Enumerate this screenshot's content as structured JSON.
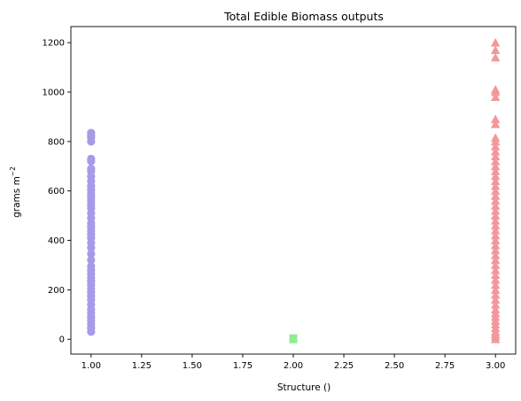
{
  "chart_data": {
    "type": "scatter",
    "title": "Total Edible Biomass outputs",
    "xlabel": "Structure ()",
    "ylabel_text": "grams m",
    "ylabel_superscript": "−2",
    "xlim": [
      0.9,
      3.1
    ],
    "ylim": [
      -60,
      1265
    ],
    "x_ticks": [
      1.0,
      1.25,
      1.5,
      1.75,
      2.0,
      2.25,
      2.5,
      2.75,
      3.0
    ],
    "x_tick_labels": [
      "1.00",
      "1.25",
      "1.50",
      "1.75",
      "2.00",
      "2.25",
      "2.50",
      "2.75",
      "3.00"
    ],
    "y_ticks": [
      0,
      200,
      400,
      600,
      800,
      1000,
      1200
    ],
    "y_tick_labels": [
      "0",
      "200",
      "400",
      "600",
      "800",
      "1000",
      "1200"
    ],
    "grid": false,
    "legend": false,
    "series": [
      {
        "marker": "circle",
        "color": "#a89ae8",
        "x": 1.0,
        "values": [
          30,
          45,
          60,
          75,
          90,
          105,
          120,
          140,
          160,
          175,
          190,
          205,
          220,
          235,
          250,
          265,
          280,
          295,
          320,
          345,
          370,
          390,
          410,
          425,
          440,
          455,
          470,
          490,
          510,
          530,
          545,
          560,
          575,
          590,
          605,
          620,
          640,
          660,
          680,
          690,
          720,
          730,
          800,
          815,
          825,
          835
        ]
      },
      {
        "marker": "square",
        "color": "#90ee90",
        "x": 2.0,
        "values": [
          0,
          2,
          4
        ]
      },
      {
        "marker": "triangle",
        "color": "#f4979b",
        "x": 3.0,
        "values": [
          0,
          10,
          20,
          30,
          45,
          60,
          75,
          90,
          105,
          120,
          140,
          160,
          180,
          200,
          220,
          240,
          260,
          280,
          300,
          320,
          340,
          360,
          380,
          400,
          420,
          440,
          460,
          480,
          500,
          520,
          540,
          560,
          580,
          600,
          620,
          640,
          660,
          680,
          700,
          720,
          740,
          760,
          780,
          800,
          815,
          870,
          890,
          980,
          1000,
          1010,
          1140,
          1170,
          1200
        ]
      }
    ]
  }
}
